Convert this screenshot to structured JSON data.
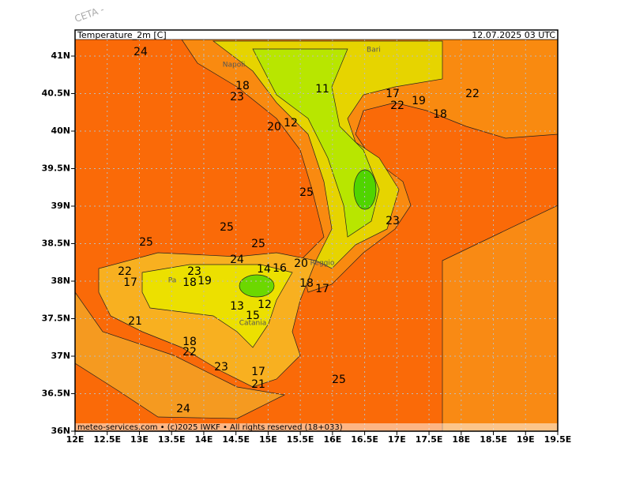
{
  "title": "Temperature_2m [C]",
  "valid_time": "12.07.2025 03 UTC",
  "corner_label": "CETA -",
  "footer": "meteo-services.com • (c)2025 IWKF • All rights reserved (18+033)",
  "lat_labels": [
    "41N",
    "40.5N",
    "40N",
    "39.5N",
    "39N",
    "38.5N",
    "38N",
    "37.5N",
    "37N",
    "36.5N",
    "36N"
  ],
  "lon_labels": [
    "12E",
    "12.5E",
    "13E",
    "13.5E",
    "14E",
    "14.5E",
    "15E",
    "15.5E",
    "16E",
    "16.5E",
    "17E",
    "17.5E",
    "18E",
    "18.5E",
    "19E",
    "19.5E"
  ],
  "cities": [
    "Napoli",
    "Bari",
    "Pa",
    "Catania",
    "Reggio"
  ],
  "contour_labels": [
    "24",
    "18",
    "23",
    "11",
    "17",
    "22",
    "19",
    "22",
    "18",
    "20",
    "12",
    "25",
    "23",
    "25",
    "25",
    "25",
    "24",
    "14",
    "16",
    "20",
    "22",
    "23",
    "17",
    "18",
    "19",
    "18",
    "17",
    "13",
    "12",
    "15",
    "21",
    "18",
    "22",
    "23",
    "17",
    "21",
    "25",
    "24"
  ]
}
